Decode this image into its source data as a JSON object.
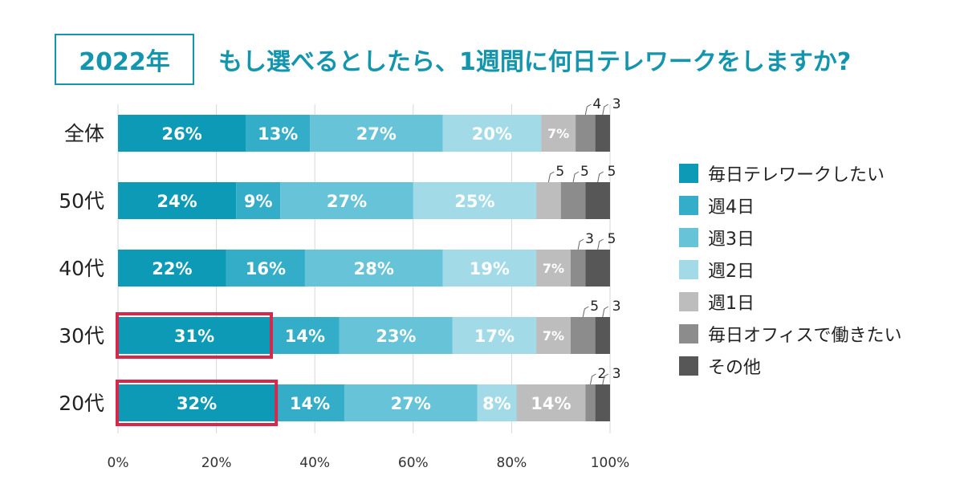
{
  "header": {
    "year_label": "2022年",
    "title": "もし選べるとしたら、1週間に何日テレワークをしますか?"
  },
  "chart_data": {
    "type": "bar",
    "orientation": "horizontal",
    "stacked": true,
    "categories": [
      "全体",
      "50代",
      "40代",
      "30代",
      "20代"
    ],
    "series": [
      {
        "name": "毎日テレワークしたい",
        "color": "#0c9ab6",
        "values": [
          26,
          24,
          22,
          31,
          32
        ],
        "labels": [
          "26%",
          "24%",
          "22%",
          "31%",
          "32%"
        ]
      },
      {
        "name": "週4日",
        "color": "#34aec8",
        "values": [
          13,
          9,
          16,
          14,
          14
        ],
        "labels": [
          "13%",
          "9%",
          "16%",
          "14%",
          "14%"
        ]
      },
      {
        "name": "週3日",
        "color": "#66c3d8",
        "values": [
          27,
          27,
          28,
          23,
          27
        ],
        "labels": [
          "27%",
          "27%",
          "28%",
          "23%",
          "27%"
        ]
      },
      {
        "name": "週2日",
        "color": "#a2dbe7",
        "values": [
          20,
          25,
          19,
          17,
          8
        ],
        "labels": [
          "20%",
          "25%",
          "19%",
          "17%",
          "8%"
        ]
      },
      {
        "name": "週1日",
        "color": "#bdbdbd",
        "values": [
          7,
          5,
          7,
          7,
          14
        ],
        "labels": [
          "7%",
          "5",
          "7%",
          "7%",
          "14%"
        ]
      },
      {
        "name": "毎日オフィスで働きたい",
        "color": "#8c8c8c",
        "values": [
          4,
          5,
          3,
          5,
          2
        ],
        "labels": [
          "4",
          "5",
          "3",
          "5",
          "2"
        ]
      },
      {
        "name": "その他",
        "color": "#575757",
        "values": [
          3,
          5,
          5,
          3,
          3
        ],
        "labels": [
          "3",
          "5",
          "5",
          "3",
          "3"
        ]
      }
    ],
    "xlim": [
      0,
      100
    ],
    "x_ticks": [
      "0%",
      "20%",
      "40%",
      "60%",
      "80%",
      "100%"
    ],
    "highlighted": [
      {
        "category": "30代",
        "series": "毎日テレワークしたい",
        "color": "#d6284a"
      },
      {
        "category": "20代",
        "series": "毎日テレワークしたい",
        "color": "#d6284a"
      }
    ],
    "legend_position": "right",
    "grid": true
  }
}
